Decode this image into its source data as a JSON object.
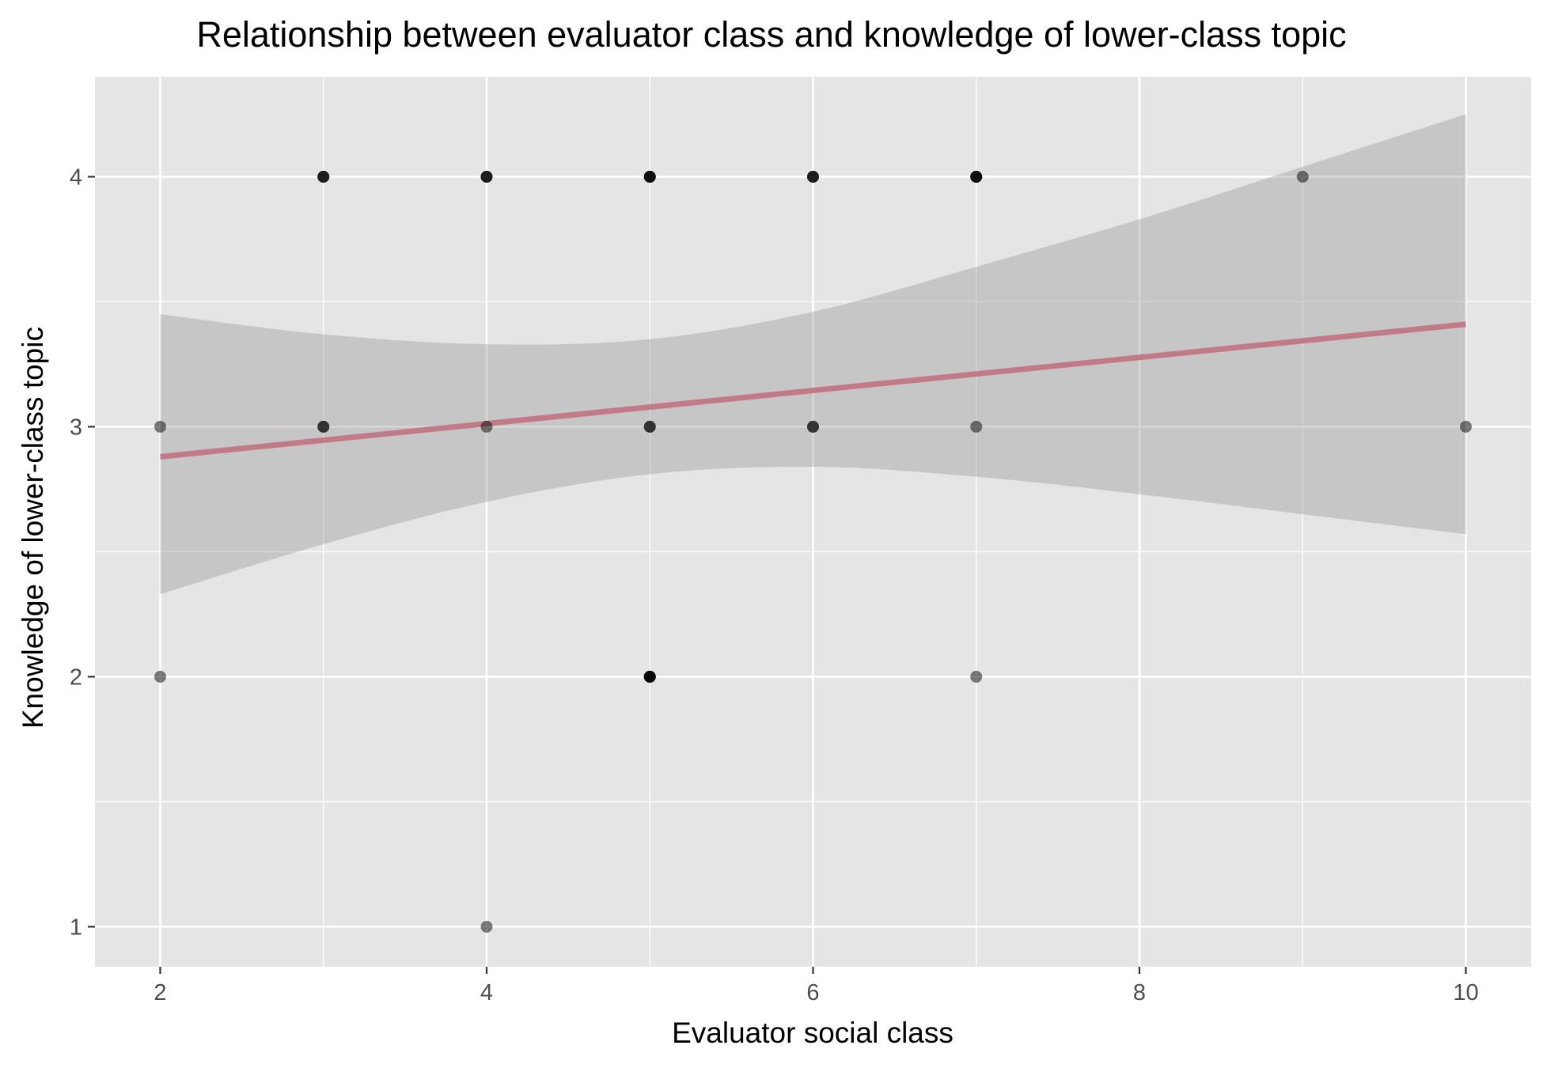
{
  "chart_data": {
    "type": "scatter",
    "title": "Relationship between evaluator class and knowledge of lower-class topic",
    "xlabel": "Evaluator social class",
    "ylabel": "Knowledge of lower-class topic",
    "xlim": [
      1.6,
      10.4
    ],
    "ylim": [
      0.84,
      4.4
    ],
    "x_ticks": [
      2,
      4,
      6,
      8,
      10
    ],
    "y_ticks": [
      1,
      2,
      3,
      4
    ],
    "grid": true,
    "legend": "none",
    "colors": {
      "panel": "#e5e5e5",
      "grid": "#ffffff",
      "point": "#000000",
      "fit_line": "#c27a88",
      "ribbon": "#999999"
    },
    "points": [
      {
        "x": 2,
        "y": 3,
        "n": 1
      },
      {
        "x": 2,
        "y": 2,
        "n": 1
      },
      {
        "x": 3,
        "y": 4,
        "n": 3
      },
      {
        "x": 3,
        "y": 3,
        "n": 2
      },
      {
        "x": 4,
        "y": 4,
        "n": 3
      },
      {
        "x": 4,
        "y": 3,
        "n": 1
      },
      {
        "x": 4,
        "y": 1,
        "n": 1
      },
      {
        "x": 5,
        "y": 4,
        "n": 4
      },
      {
        "x": 5,
        "y": 3,
        "n": 2
      },
      {
        "x": 5,
        "y": 2,
        "n": 5
      },
      {
        "x": 6,
        "y": 4,
        "n": 3
      },
      {
        "x": 6,
        "y": 3,
        "n": 2
      },
      {
        "x": 7,
        "y": 4,
        "n": 4
      },
      {
        "x": 7,
        "y": 3,
        "n": 1
      },
      {
        "x": 7,
        "y": 2,
        "n": 1
      },
      {
        "x": 9,
        "y": 4,
        "n": 1
      },
      {
        "x": 10,
        "y": 3,
        "n": 1
      }
    ],
    "fit_line": {
      "x": [
        2,
        10
      ],
      "y": [
        2.88,
        3.41
      ]
    },
    "confidence_band": {
      "x": [
        2,
        3,
        4,
        5,
        6,
        7,
        8,
        9,
        10
      ],
      "lower": [
        2.33,
        2.53,
        2.7,
        2.81,
        2.84,
        2.8,
        2.73,
        2.65,
        2.57
      ],
      "upper": [
        3.45,
        3.37,
        3.33,
        3.35,
        3.46,
        3.64,
        3.83,
        4.04,
        4.25
      ]
    }
  }
}
